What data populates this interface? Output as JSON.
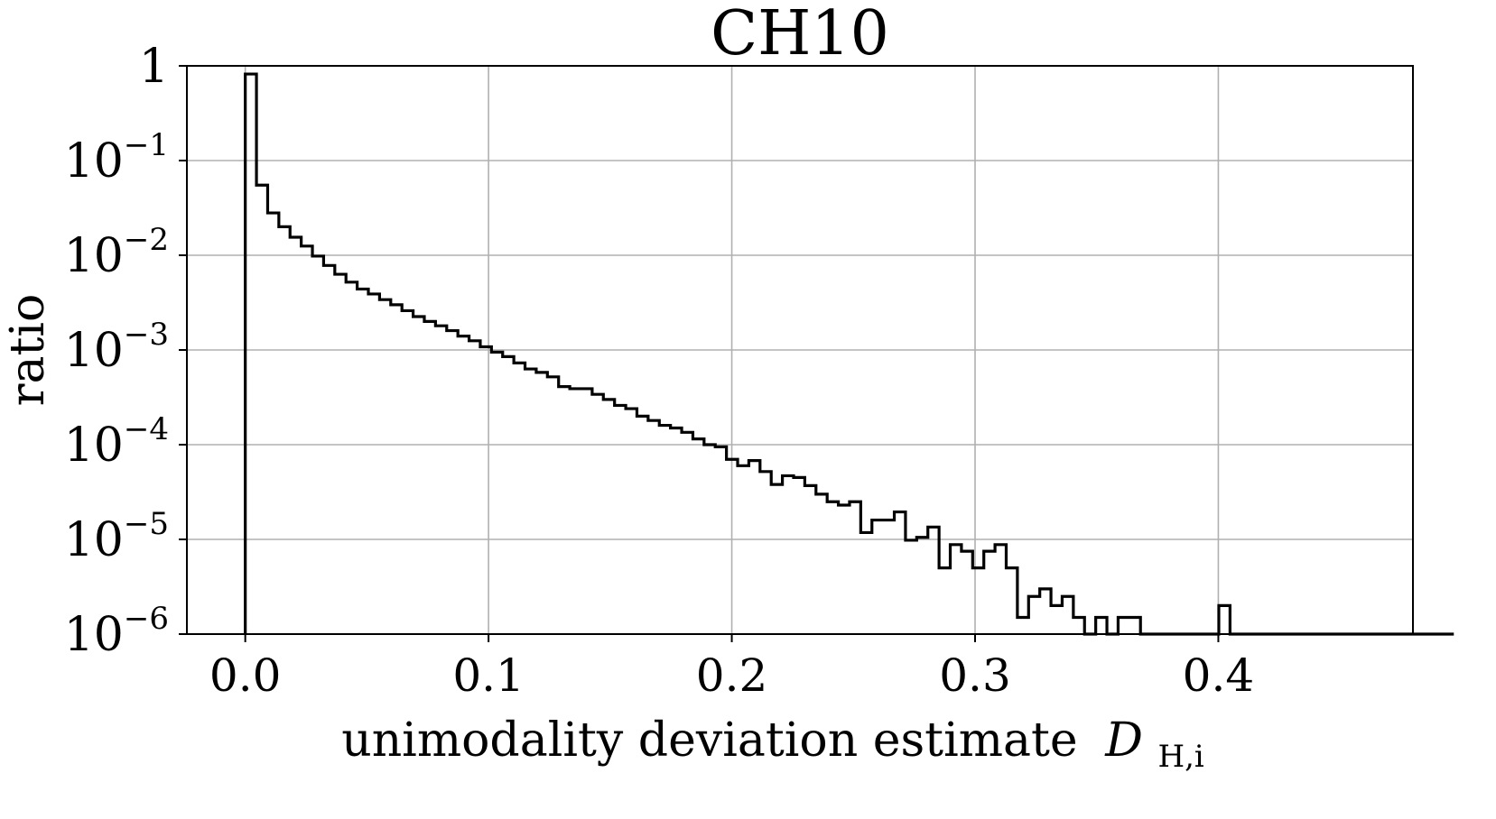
{
  "chart_data": {
    "type": "histogram",
    "title": "CH10",
    "xlabel": "unimodality deviation estimate",
    "xlabel_symbol": "D",
    "xlabel_subscript": "H,i",
    "ylabel": "ratio",
    "yscale": "log",
    "xlim": [
      -0.024,
      0.48
    ],
    "ylim": [
      1e-06,
      1
    ],
    "grid": true,
    "x_ticks": [
      {
        "value": 0.0,
        "label": "0.0"
      },
      {
        "value": 0.1,
        "label": "0.1"
      },
      {
        "value": 0.2,
        "label": "0.2"
      },
      {
        "value": 0.3,
        "label": "0.3"
      },
      {
        "value": 0.4,
        "label": "0.4"
      }
    ],
    "y_ticks": [
      {
        "value": 1,
        "base": "1",
        "exp": ""
      },
      {
        "value": 0.1,
        "base": "10",
        "exp": "−1"
      },
      {
        "value": 0.01,
        "base": "10",
        "exp": "−2"
      },
      {
        "value": 0.001,
        "base": "10",
        "exp": "−3"
      },
      {
        "value": 0.0001,
        "base": "10",
        "exp": "−4"
      },
      {
        "value": 1e-05,
        "base": "10",
        "exp": "−5"
      },
      {
        "value": 1e-06,
        "base": "10",
        "exp": "−6"
      }
    ],
    "bin_width": 0.0046,
    "bin_start": 0.0,
    "bin_values": [
      0.82,
      0.055,
      0.028,
      0.02,
      0.0155,
      0.0125,
      0.0098,
      0.0078,
      0.0063,
      0.0052,
      0.0044,
      0.0039,
      0.0034,
      0.003,
      0.0026,
      0.00225,
      0.002,
      0.0018,
      0.0016,
      0.0014,
      0.00125,
      0.00108,
      0.00095,
      0.00085,
      0.00073,
      0.00063,
      0.00058,
      0.00052,
      0.00041,
      0.00039,
      0.00039,
      0.00034,
      0.0003,
      0.00026,
      0.00024,
      0.0002,
      0.00018,
      0.00016,
      0.00015,
      0.000135,
      0.000115,
      0.0001,
      9.5e-05,
      7e-05,
      6e-05,
      6.8e-05,
      5.2e-05,
      3.8e-05,
      4.7e-05,
      4.5e-05,
      3.7e-05,
      3e-05,
      2.5e-05,
      2.3e-05,
      2.5e-05,
      1.18e-05,
      1.6e-05,
      1.6e-05,
      1.95e-05,
      9.8e-06,
      1.05e-05,
      1.35e-05,
      5e-06,
      8.8e-06,
      7.5e-06,
      5e-06,
      7.5e-06,
      8.8e-06,
      5e-06,
      1.5e-06,
      2.5e-06,
      3e-06,
      2e-06,
      2.5e-06,
      1.5e-06,
      1e-06,
      1.5e-06,
      1e-06,
      1.5e-06,
      1.5e-06,
      1e-06,
      1e-06,
      1e-06,
      1e-06,
      1e-06,
      1e-06,
      1e-06,
      2e-06,
      1e-06,
      1e-06,
      1e-06,
      1e-06,
      1e-06,
      1e-06,
      1e-06,
      1e-06,
      1e-06,
      1e-06,
      1e-06,
      1e-06,
      1e-06,
      1e-06,
      1e-06,
      1e-06,
      1e-06,
      1e-06,
      1e-06,
      1e-06
    ]
  }
}
